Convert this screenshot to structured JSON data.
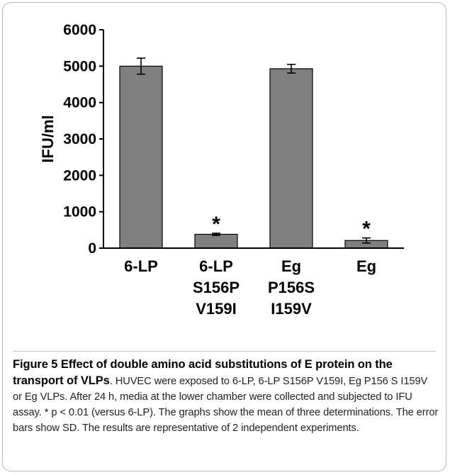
{
  "chart_data": {
    "type": "bar",
    "categories": [
      [
        "6-LP"
      ],
      [
        "6-LP",
        "S156P",
        "V159I"
      ],
      [
        "Eg",
        "P156S",
        "I159V"
      ],
      [
        "Eg"
      ]
    ],
    "values": [
      5000,
      380,
      4930,
      210
    ],
    "errors": [
      220,
      30,
      120,
      70
    ],
    "significance": [
      "",
      "*",
      "",
      "*"
    ],
    "ylabel": "IFU/ml",
    "ylim": [
      0,
      6000
    ],
    "yticks": [
      0,
      1000,
      2000,
      3000,
      4000,
      5000,
      6000
    ],
    "grid": false,
    "colors": {
      "bar": "#808080",
      "bar_stroke": "#000000",
      "axis": "#000000"
    }
  },
  "caption": {
    "title": "Figure 5 Effect of double amino acid substitutions of E protein on the transport of VLPs",
    "text": ". HUVEC were exposed to 6-LP, 6-LP S156P V159I, Eg P156 S I159V or Eg VLPs. After 24 h, media at the lower chamber were collected and subjected to IFU assay. * p < 0.01 (versus 6-LP). The graphs show the mean of three determinations. The error bars show SD. The results are representative of 2 independent experiments."
  }
}
